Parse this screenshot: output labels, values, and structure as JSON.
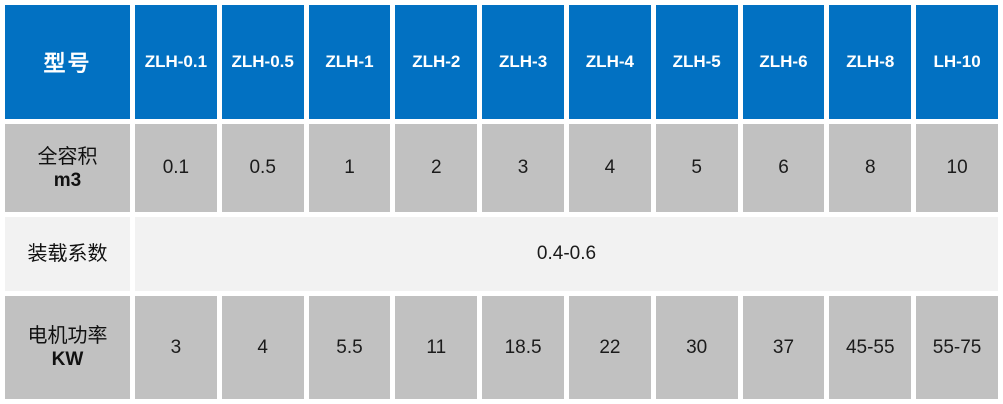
{
  "chart_data": {
    "type": "table",
    "title": "",
    "columns": [
      "型号",
      "ZLH-0.1",
      "ZLH-0.5",
      "ZLH-1",
      "ZLH-2",
      "ZLH-3",
      "ZLH-4",
      "ZLH-5",
      "ZLH-6",
      "ZLH-8",
      "LH-10"
    ],
    "rows": [
      {
        "label": "全容积 m3",
        "values": [
          "0.1",
          "0.5",
          "1",
          "2",
          "3",
          "4",
          "5",
          "6",
          "8",
          "10"
        ]
      },
      {
        "label": "装载系数",
        "values": [
          "0.4-0.6"
        ],
        "note": "single merged cell spanning all model columns"
      },
      {
        "label": "电机功率 KW",
        "values": [
          "3",
          "4",
          "5.5",
          "11",
          "18.5",
          "22",
          "30",
          "37",
          "45-55",
          "55-75"
        ]
      }
    ]
  },
  "table": {
    "header": {
      "label": "型号",
      "models": [
        "ZLH-0.1",
        "ZLH-0.5",
        "ZLH-1",
        "ZLH-2",
        "ZLH-3",
        "ZLH-4",
        "ZLH-5",
        "ZLH-6",
        "ZLH-8",
        "LH-10"
      ]
    },
    "volume": {
      "label_cjk": "全容积",
      "label_unit": "m3",
      "values": [
        "0.1",
        "0.5",
        "1",
        "2",
        "3",
        "4",
        "5",
        "6",
        "8",
        "10"
      ]
    },
    "load": {
      "label_cjk": "装载系数",
      "merged_value": "0.4-0.6"
    },
    "power": {
      "label_cjk": "电机功率",
      "label_unit": "KW",
      "values": [
        "3",
        "4",
        "5.5",
        "11",
        "18.5",
        "22",
        "30",
        "37",
        "45-55",
        "55-75"
      ]
    },
    "colors": {
      "header_bg": "#0271c2",
      "header_text": "#ffffff",
      "gray_row_bg": "#c1c1c1",
      "light_row_bg": "#f2f2f2",
      "body_text": "#1b1b1b",
      "gap_white": "#ffffff"
    }
  }
}
